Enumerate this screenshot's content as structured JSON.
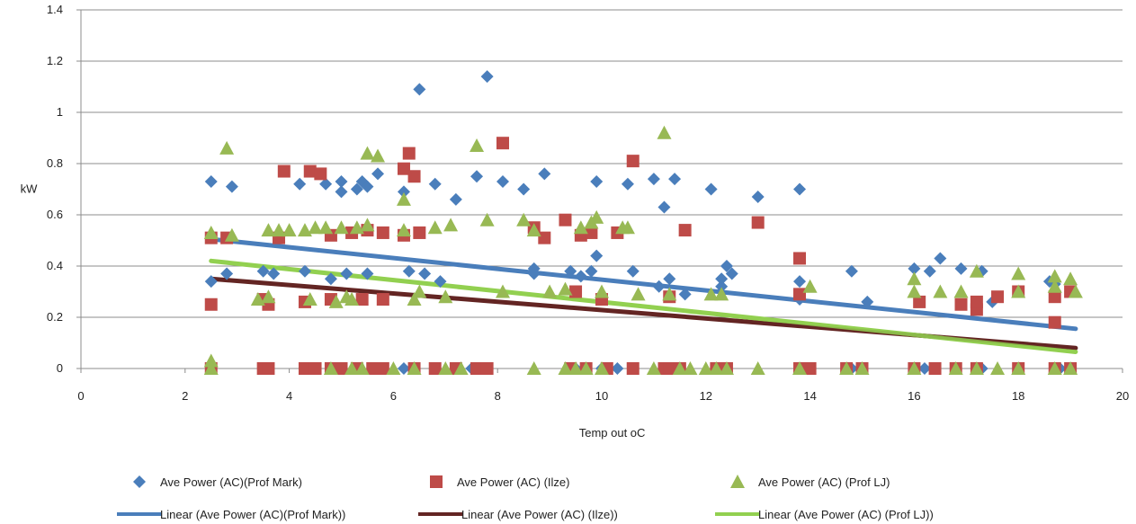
{
  "chart_data": {
    "type": "scatter",
    "title": "",
    "xlabel": "Temp out oC",
    "ylabel": "kW",
    "xlim": [
      0,
      20
    ],
    "ylim": [
      0,
      1.4
    ],
    "x_ticks": [
      "0",
      "2",
      "4",
      "6",
      "8",
      "10",
      "12",
      "14",
      "16",
      "18",
      "20"
    ],
    "y_ticks": [
      "0",
      "0.2",
      "0.4",
      "0.6",
      "0.8",
      "1",
      "1.2",
      "1.4"
    ],
    "grid": "horizontal",
    "legend_position": "bottom",
    "series": [
      {
        "name": "Ave Power (AC)(Prof Mark)",
        "marker": "diamond",
        "color": "#4a7ebb",
        "points": [
          [
            2.5,
            0.73
          ],
          [
            2.5,
            0.34
          ],
          [
            2.9,
            0.71
          ],
          [
            2.8,
            0.37
          ],
          [
            3.5,
            0.38
          ],
          [
            3.7,
            0.37
          ],
          [
            4.2,
            0.72
          ],
          [
            4.3,
            0.38
          ],
          [
            4.7,
            0.72
          ],
          [
            4.8,
            0.35
          ],
          [
            5.0,
            0.73
          ],
          [
            5.0,
            0.69
          ],
          [
            5.1,
            0.37
          ],
          [
            5.3,
            0.7
          ],
          [
            5.4,
            0.73
          ],
          [
            5.5,
            0.71
          ],
          [
            5.5,
            0.37
          ],
          [
            5.7,
            0.76
          ],
          [
            6.2,
            0.69
          ],
          [
            6.3,
            0.38
          ],
          [
            6.5,
            1.09
          ],
          [
            6.6,
            0.37
          ],
          [
            6.8,
            0.72
          ],
          [
            6.9,
            0.34
          ],
          [
            7.2,
            0.66
          ],
          [
            7.6,
            0.75
          ],
          [
            7.8,
            1.14
          ],
          [
            8.1,
            0.73
          ],
          [
            8.5,
            0.7
          ],
          [
            8.7,
            0.37
          ],
          [
            8.7,
            0.39
          ],
          [
            8.9,
            0.76
          ],
          [
            9.4,
            0.38
          ],
          [
            9.6,
            0.36
          ],
          [
            9.8,
            0.38
          ],
          [
            9.9,
            0.73
          ],
          [
            9.9,
            0.44
          ],
          [
            10.5,
            0.72
          ],
          [
            10.6,
            0.38
          ],
          [
            11.0,
            0.74
          ],
          [
            11.1,
            0.32
          ],
          [
            11.2,
            0.63
          ],
          [
            11.3,
            0.35
          ],
          [
            11.4,
            0.74
          ],
          [
            11.6,
            0.29
          ],
          [
            12.1,
            0.7
          ],
          [
            12.3,
            0.35
          ],
          [
            12.3,
            0.32
          ],
          [
            12.4,
            0.4
          ],
          [
            12.5,
            0.37
          ],
          [
            13.0,
            0.67
          ],
          [
            13.8,
            0.7
          ],
          [
            13.8,
            0.34
          ],
          [
            13.8,
            0.27
          ],
          [
            14.8,
            0.38
          ],
          [
            15.1,
            0.26
          ],
          [
            16.0,
            0.39
          ],
          [
            16.3,
            0.38
          ],
          [
            16.5,
            0.43
          ],
          [
            16.9,
            0.39
          ],
          [
            17.3,
            0.38
          ],
          [
            17.5,
            0.26
          ],
          [
            18.6,
            0.34
          ],
          [
            18.7,
            0.33
          ],
          [
            19.0,
            0.3
          ]
        ]
      },
      {
        "name": "Ave Power (AC) (Ilze)",
        "marker": "square",
        "color": "#be4b48",
        "points": [
          [
            2.5,
            0.25
          ],
          [
            2.5,
            0.51
          ],
          [
            2.8,
            0.51
          ],
          [
            3.5,
            0.27
          ],
          [
            3.6,
            0.25
          ],
          [
            3.8,
            0.51
          ],
          [
            3.9,
            0.77
          ],
          [
            4.3,
            0.26
          ],
          [
            4.4,
            0.77
          ],
          [
            4.6,
            0.76
          ],
          [
            4.8,
            0.27
          ],
          [
            4.8,
            0.52
          ],
          [
            5.2,
            0.53
          ],
          [
            5.4,
            0.27
          ],
          [
            5.5,
            0.54
          ],
          [
            5.8,
            0.27
          ],
          [
            5.8,
            0.53
          ],
          [
            6.2,
            0.78
          ],
          [
            6.3,
            0.84
          ],
          [
            6.4,
            0.75
          ],
          [
            6.5,
            0.53
          ],
          [
            6.2,
            0.52
          ],
          [
            8.1,
            0.88
          ],
          [
            8.7,
            0.55
          ],
          [
            8.9,
            0.51
          ],
          [
            9.3,
            0.58
          ],
          [
            9.5,
            0.3
          ],
          [
            9.6,
            0.52
          ],
          [
            9.8,
            0.53
          ],
          [
            10.0,
            0.27
          ],
          [
            10.3,
            0.53
          ],
          [
            10.6,
            0.81
          ],
          [
            11.3,
            0.28
          ],
          [
            11.6,
            0.54
          ],
          [
            13.0,
            0.57
          ],
          [
            13.8,
            0.43
          ],
          [
            13.8,
            0.29
          ],
          [
            16.1,
            0.26
          ],
          [
            16.9,
            0.25
          ],
          [
            17.2,
            0.23
          ],
          [
            17.2,
            0.26
          ],
          [
            17.6,
            0.28
          ],
          [
            18.0,
            0.3
          ],
          [
            18.7,
            0.18
          ],
          [
            18.7,
            0.28
          ],
          [
            19.0,
            0.3
          ]
        ]
      },
      {
        "name": "Ave Power (AC) (Prof LJ)",
        "marker": "triangle",
        "color": "#98b954",
        "points": [
          [
            2.5,
            0.53
          ],
          [
            2.5,
            0.03
          ],
          [
            2.8,
            0.86
          ],
          [
            2.9,
            0.52
          ],
          [
            3.4,
            0.27
          ],
          [
            3.6,
            0.28
          ],
          [
            3.6,
            0.54
          ],
          [
            3.8,
            0.54
          ],
          [
            4.0,
            0.54
          ],
          [
            4.3,
            0.54
          ],
          [
            4.4,
            0.27
          ],
          [
            4.5,
            0.55
          ],
          [
            4.7,
            0.55
          ],
          [
            4.9,
            0.26
          ],
          [
            5.0,
            0.55
          ],
          [
            5.1,
            0.28
          ],
          [
            5.2,
            0.27
          ],
          [
            5.3,
            0.55
          ],
          [
            5.5,
            0.84
          ],
          [
            5.5,
            0.56
          ],
          [
            5.7,
            0.83
          ],
          [
            6.2,
            0.66
          ],
          [
            6.2,
            0.54
          ],
          [
            6.4,
            0.27
          ],
          [
            6.5,
            0.3
          ],
          [
            6.8,
            0.55
          ],
          [
            7.0,
            0.28
          ],
          [
            7.1,
            0.56
          ],
          [
            7.6,
            0.87
          ],
          [
            7.8,
            0.58
          ],
          [
            8.1,
            0.3
          ],
          [
            8.5,
            0.58
          ],
          [
            8.7,
            0.54
          ],
          [
            9.0,
            0.3
          ],
          [
            9.3,
            0.31
          ],
          [
            9.6,
            0.55
          ],
          [
            9.8,
            0.57
          ],
          [
            9.9,
            0.59
          ],
          [
            10.0,
            0.3
          ],
          [
            10.4,
            0.55
          ],
          [
            10.5,
            0.55
          ],
          [
            10.7,
            0.29
          ],
          [
            11.2,
            0.92
          ],
          [
            11.3,
            0.29
          ],
          [
            12.1,
            0.29
          ],
          [
            12.3,
            0.29
          ],
          [
            14.0,
            0.32
          ],
          [
            16.0,
            0.35
          ],
          [
            16.0,
            0.3
          ],
          [
            16.5,
            0.3
          ],
          [
            16.9,
            0.3
          ],
          [
            17.2,
            0.38
          ],
          [
            18.0,
            0.37
          ],
          [
            18.0,
            0.3
          ],
          [
            18.7,
            0.36
          ],
          [
            18.7,
            0.32
          ],
          [
            19.0,
            0.35
          ],
          [
            19.1,
            0.3
          ]
        ]
      }
    ],
    "zero_points": {
      "Ave Power (AC)(Prof Mark)": [
        6.2,
        6.4,
        7.5,
        9.5,
        10.0,
        10.3,
        11.2,
        12.4,
        13.8,
        14.8,
        15.0,
        16.2,
        16.8,
        17.3,
        18.0,
        18.8
      ],
      "Ave Power (AC) (Ilze)": [
        2.5,
        3.5,
        3.6,
        4.3,
        4.5,
        4.8,
        5.0,
        5.3,
        5.6,
        5.8,
        6.4,
        6.8,
        7.2,
        7.6,
        7.8,
        9.4,
        9.7,
        10.1,
        10.6,
        11.2,
        11.3,
        11.5,
        12.2,
        12.4,
        13.8,
        14.0,
        14.7,
        15.0,
        16.0,
        16.4,
        16.8,
        17.2,
        18.0,
        18.7,
        19.0
      ],
      "Ave Power (AC) (Prof LJ)": [
        2.5,
        4.8,
        5.2,
        5.4,
        6.0,
        6.4,
        7.0,
        7.3,
        8.7,
        9.3,
        9.5,
        9.7,
        10.0,
        11.0,
        11.5,
        11.7,
        12.0,
        12.2,
        12.4,
        13.0,
        13.8,
        14.7,
        15.0,
        16.0,
        16.8,
        17.2,
        17.6,
        18.0,
        18.7,
        19.0
      ]
    },
    "trendlines": [
      {
        "name": "Linear (Ave Power (AC)(Prof Mark))",
        "color": "#4a7ebb",
        "x": [
          2.5,
          19.1
        ],
        "y": [
          0.505,
          0.155
        ]
      },
      {
        "name": "Linear (Ave Power (AC) (Ilze))",
        "color": "#632523",
        "x": [
          2.5,
          19.1
        ],
        "y": [
          0.35,
          0.08
        ]
      },
      {
        "name": "Linear (Ave Power (AC) (Prof LJ))",
        "color": "#92d050",
        "x": [
          2.5,
          19.1
        ],
        "y": [
          0.42,
          0.065
        ]
      }
    ]
  }
}
